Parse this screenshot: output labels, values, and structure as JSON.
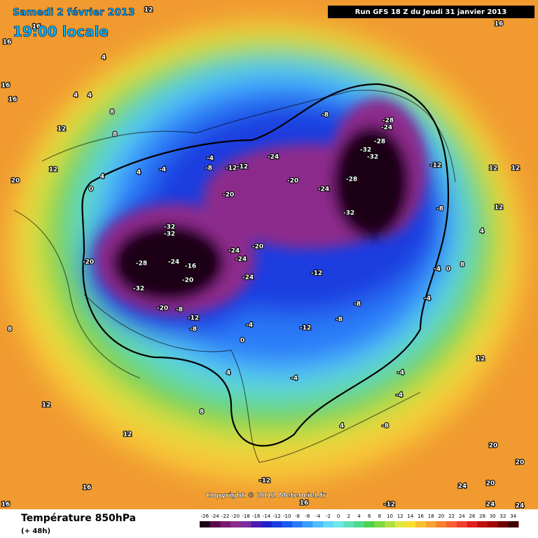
{
  "header": {
    "date": "Samedi 2 février 2013",
    "time": "19:00 locale",
    "run": "Run GFS 18 Z du Jeudi 31 janvier 2013"
  },
  "map": {
    "contour_labels": [
      12,
      16,
      16,
      16,
      16,
      4,
      4,
      4,
      8,
      8,
      12,
      16,
      20,
      12,
      0,
      4,
      4,
      -4,
      -4,
      -8,
      -12,
      -12,
      -24,
      -20,
      -24,
      -28,
      -32,
      -8,
      -28,
      -24,
      -28,
      -32,
      -32,
      -12,
      -8,
      -20,
      -32,
      -32,
      -28,
      -24,
      -16,
      -20,
      -32,
      -20,
      -20,
      -8,
      -12,
      -8,
      -24,
      -24,
      -20,
      -24,
      -12,
      -8,
      -8,
      -12,
      -4,
      0,
      -4,
      -4,
      0,
      12,
      12,
      12,
      4,
      8,
      12,
      20,
      20,
      24,
      20,
      24,
      24,
      8,
      12,
      12,
      8,
      4,
      -4,
      -4,
      4,
      -8,
      -12,
      16,
      16,
      16,
      -12,
      -4
    ],
    "copyright": "Copyright © 2012 Meteociel.fr"
  },
  "footer": {
    "title": "Température 850hPa",
    "lead": "(+ 48h)"
  },
  "legend": {
    "ticks": [
      -26,
      -24,
      -22,
      -20,
      -18,
      -16,
      -14,
      -12,
      -10,
      -8,
      -6,
      -4,
      -2,
      0,
      2,
      4,
      6,
      8,
      10,
      12,
      14,
      16,
      18,
      20,
      22,
      24,
      26,
      28,
      30,
      32,
      34
    ],
    "colors": [
      "#1a0018",
      "#5a0a4a",
      "#7a1a70",
      "#8c2c8c",
      "#7a2aa0",
      "#4b1ab4",
      "#2020c8",
      "#1a3ce0",
      "#1a5af0",
      "#2a7af8",
      "#3a9cfa",
      "#50bcfa",
      "#60d8f8",
      "#70e8e8",
      "#60e0b8",
      "#50d890",
      "#50d050",
      "#80d840",
      "#b0e040",
      "#e0e840",
      "#f8e030",
      "#f8c030",
      "#f8a030",
      "#f88030",
      "#f86030",
      "#f04030",
      "#e02020",
      "#c01010",
      "#a00808",
      "#700000",
      "#400000"
    ]
  }
}
